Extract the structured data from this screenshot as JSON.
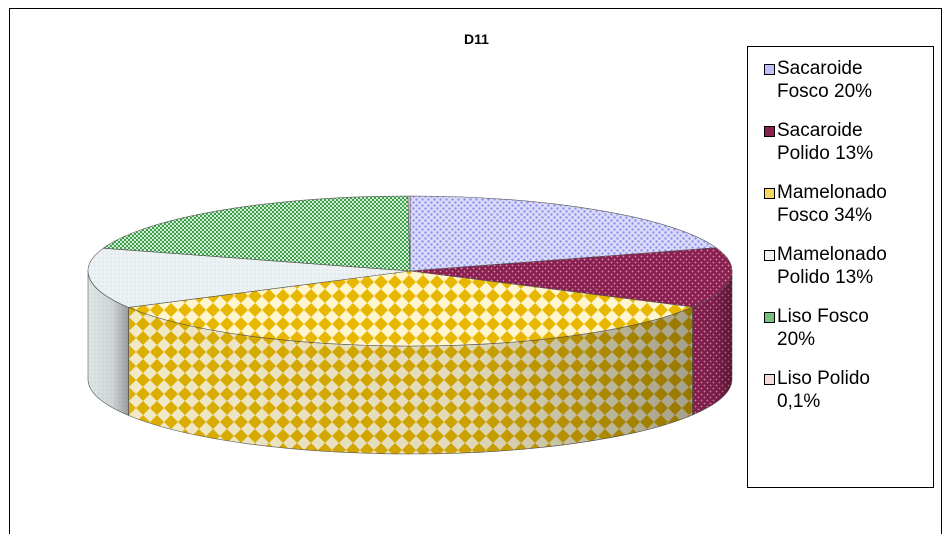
{
  "chart_data": {
    "type": "pie",
    "title": "D11",
    "legend_position": "right",
    "slices": [
      {
        "label": "Sacaroide\nFosco 20%",
        "value": 20,
        "color": "#8f8ff0",
        "pattern": "dots"
      },
      {
        "label": "Sacaroide\nPolido 13%",
        "value": 13,
        "color": "#8a2050",
        "pattern": "dots"
      },
      {
        "label": "Mamelonado\nFosco 34%",
        "value": 34,
        "color": "#e8b800",
        "pattern": "diamonds"
      },
      {
        "label": "Mamelonado\nPolido 13%",
        "value": 13,
        "color": "#d8e4e8",
        "pattern": "fine"
      },
      {
        "label": "Liso Fosco\n20%",
        "value": 20,
        "color": "#3aa04a",
        "pattern": "checks"
      },
      {
        "label": "Liso Polido\n0,1%",
        "value": 0.1,
        "color": "#e0a8a0",
        "pattern": "none"
      }
    ]
  }
}
